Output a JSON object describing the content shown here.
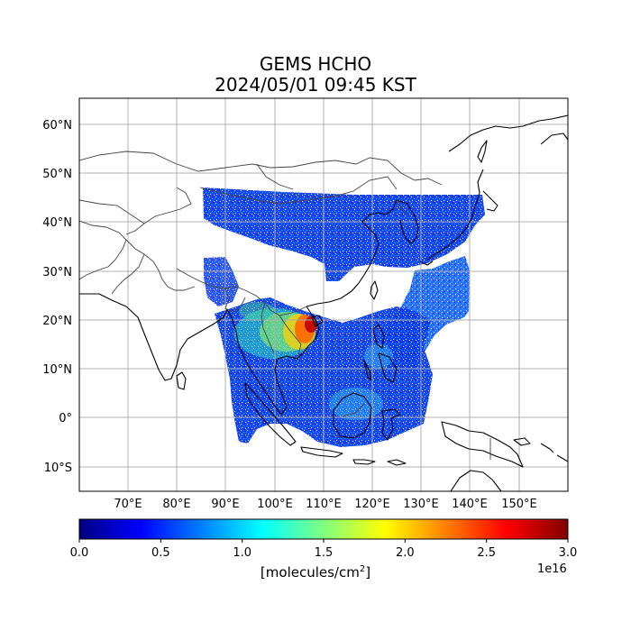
{
  "title": {
    "line1": "GEMS HCHO",
    "line2": "2024/05/01 09:45 KST"
  },
  "map": {
    "lon_range": [
      60,
      160
    ],
    "lat_range": [
      -15,
      66
    ],
    "lon_ticks": [
      "70°E",
      "80°E",
      "90°E",
      "100°E",
      "110°E",
      "120°E",
      "130°E",
      "140°E",
      "150°E"
    ],
    "lat_ticks": [
      "60°N",
      "50°N",
      "40°N",
      "30°N",
      "20°N",
      "10°N",
      "0°",
      "10°S"
    ],
    "grid": true,
    "background": "#ffffff",
    "coastline_color": "#000000",
    "border_color": "#444444"
  },
  "colorbar": {
    "colormap": "jet",
    "tick_labels": [
      "0.0",
      "0.5",
      "1.0",
      "1.5",
      "2.0",
      "2.5",
      "3.0"
    ],
    "exponent": "1e16",
    "unit_prefix": "[molecules/cm",
    "unit_exp": "2",
    "unit_suffix": "]"
  }
}
